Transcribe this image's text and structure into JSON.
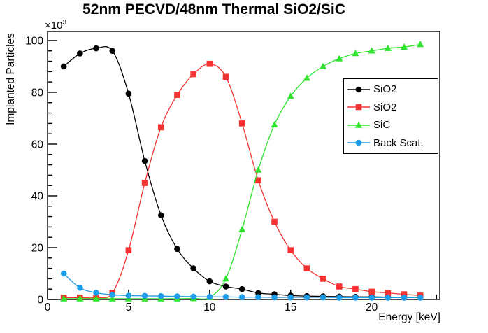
{
  "title": "52nm PECVD/48nm Thermal SiO2/SiC",
  "axes": {
    "x_label": "Energy [keV]",
    "y_label": "Implanted Particles",
    "y_multiplier_base": "×10",
    "y_multiplier_exp": "3"
  },
  "legend": {
    "items": [
      {
        "label": "SiO2",
        "color": "#000000",
        "marker": "circle"
      },
      {
        "label": "SiO2",
        "color": "#f53333",
        "marker": "square"
      },
      {
        "label": "SiC",
        "color": "#2fe32f",
        "marker": "triangle"
      },
      {
        "label": "Back Scat.",
        "color": "#1e9ce8",
        "marker": "circle"
      }
    ]
  },
  "chart_data": {
    "type": "line",
    "title": "52nm PECVD/48nm Thermal SiO2/SiC",
    "xlabel": "Energy [keV]",
    "ylabel": "Implanted Particles",
    "y_units_note": "y values are in units of 10^3 implanted particles",
    "xlim": [
      0,
      24.2
    ],
    "ylim": [
      0,
      103.5
    ],
    "x_ticks": [
      0,
      5,
      10,
      15,
      20
    ],
    "y_ticks": [
      0,
      20,
      40,
      60,
      80,
      100
    ],
    "x_minor_step": 1,
    "y_minor_step": 4,
    "grid": false,
    "legend_position": "right-center",
    "x": [
      1,
      2,
      3,
      4,
      5,
      6,
      7,
      8,
      9,
      10,
      11,
      12,
      13,
      14,
      15,
      16,
      17,
      18,
      19,
      20,
      21,
      22,
      23
    ],
    "series": [
      {
        "name": "SiO2",
        "marker": "circle",
        "color": "#000000",
        "values": [
          90,
          95,
          97,
          96,
          79.5,
          53.5,
          32.5,
          19.5,
          12,
          7,
          5,
          4,
          2.5,
          2,
          1.5,
          1.3,
          1.2,
          1.1,
          1,
          1,
          0.9,
          0.9,
          0.9
        ]
      },
      {
        "name": "SiO2",
        "marker": "square",
        "color": "#f53333",
        "values": [
          0.7,
          0.7,
          0.7,
          2.5,
          19,
          45,
          66.5,
          79,
          87,
          91,
          86,
          68,
          46,
          30,
          19,
          12,
          8,
          5,
          4,
          3,
          2.5,
          2,
          1.5
        ]
      },
      {
        "name": "SiC",
        "marker": "triangle",
        "color": "#2fe32f",
        "values": [
          0.3,
          0.3,
          0.3,
          0.3,
          0.3,
          0.3,
          0.3,
          0.3,
          0.4,
          0.8,
          8,
          27,
          50,
          67.5,
          78.5,
          85.5,
          90,
          93,
          95,
          96,
          97,
          97.5,
          98.5
        ]
      },
      {
        "name": "Back Scat.",
        "marker": "circle",
        "color": "#1e9ce8",
        "values": [
          10,
          4.5,
          2.6,
          1.8,
          1.5,
          1.4,
          1.3,
          1.2,
          1.1,
          1,
          1,
          0.9,
          0.9,
          0.8,
          0.8,
          0.8,
          0.8,
          0.7,
          0.7,
          0.7,
          0.7,
          0.7,
          0.7
        ]
      }
    ]
  }
}
